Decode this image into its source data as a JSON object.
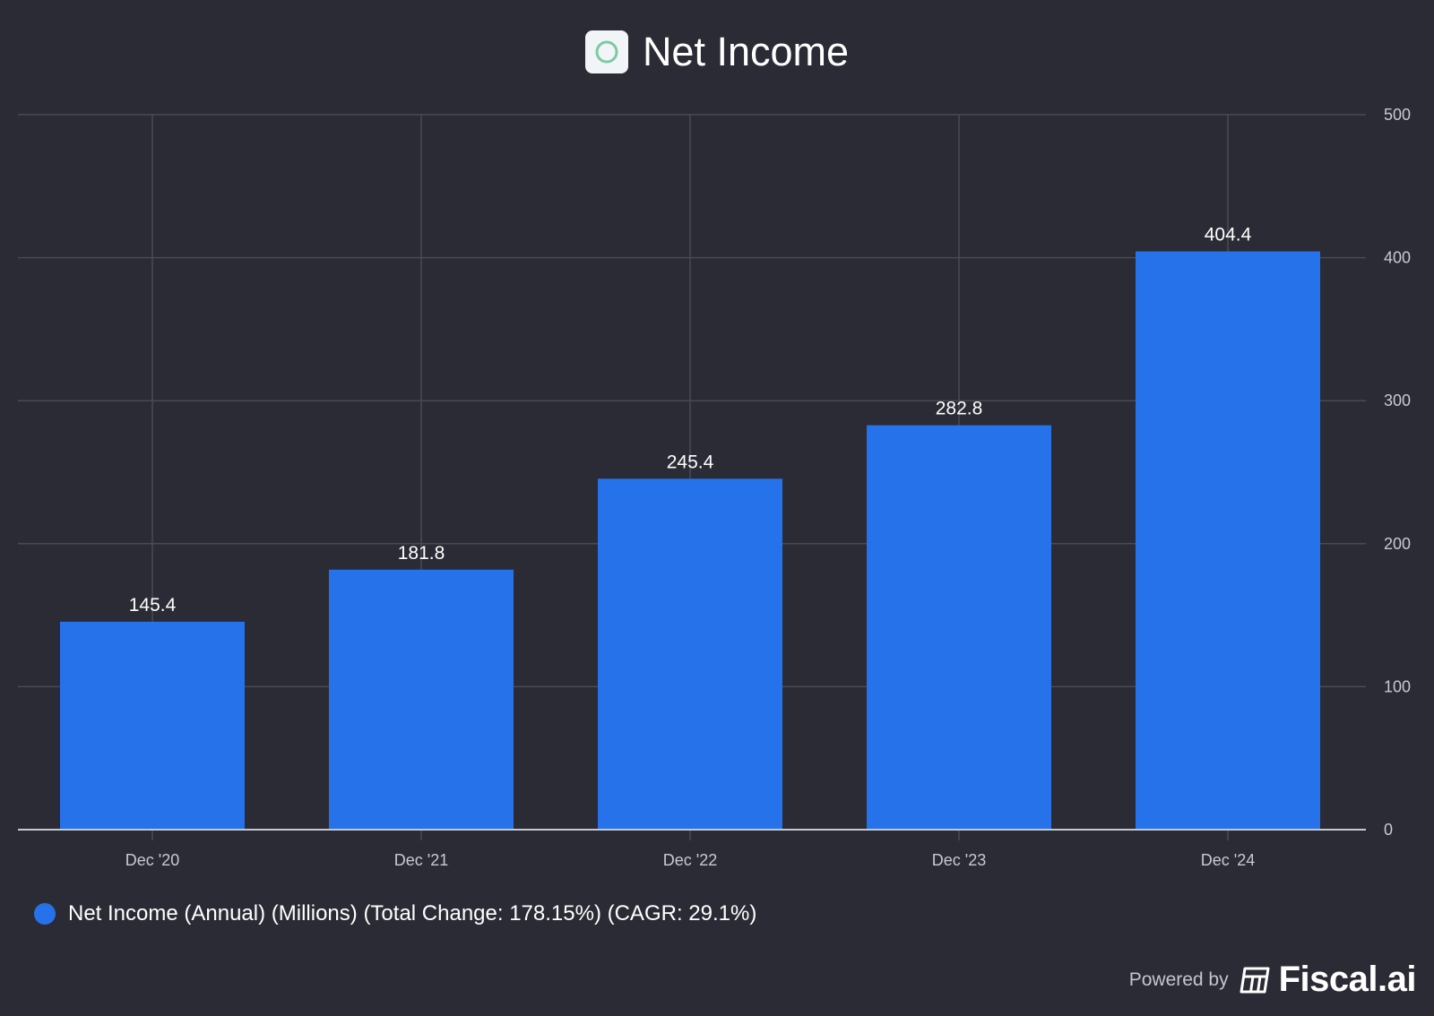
{
  "header": {
    "title": "Net Income",
    "logo_icon": "company-logo-ring-icon"
  },
  "chart_data": {
    "type": "bar",
    "title": "Net Income",
    "categories": [
      "Dec '20",
      "Dec '21",
      "Dec '22",
      "Dec '23",
      "Dec '24"
    ],
    "values": [
      145.4,
      181.8,
      245.4,
      282.8,
      404.4
    ],
    "value_labels": [
      "145.4",
      "181.8",
      "245.4",
      "282.8",
      "404.4"
    ],
    "ylim": [
      0,
      500
    ],
    "yticks": [
      0,
      100,
      200,
      300,
      400,
      500
    ],
    "ytick_labels": [
      "0",
      "100",
      "200",
      "300",
      "400",
      "500"
    ],
    "y_axis_side": "right",
    "grid": true,
    "bar_color": "#2672ea",
    "xlabel": "",
    "ylabel": ""
  },
  "legend": {
    "label": "Net Income (Annual) (Millions) (Total Change: 178.15%) (CAGR: 29.1%)",
    "color": "#2672ea"
  },
  "footer": {
    "powered_by": "Powered by",
    "brand": "Fiscal.ai",
    "brand_icon": "fiscal-ai-logo-icon"
  }
}
